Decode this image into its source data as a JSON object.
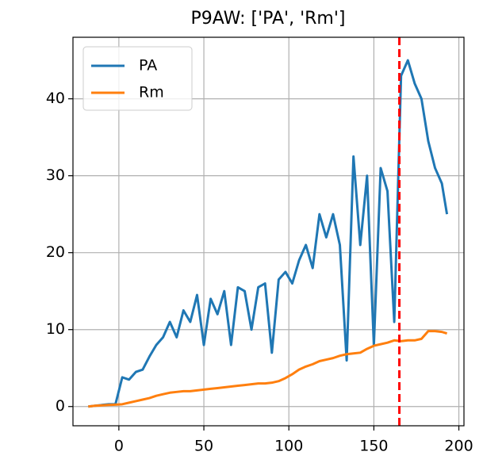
{
  "chart_data": {
    "type": "line",
    "title": "P9AW: ['PA', 'Rm']",
    "x": [
      -18,
      -14,
      -10,
      -6,
      -2,
      2,
      6,
      10,
      14,
      18,
      22,
      26,
      30,
      34,
      38,
      42,
      46,
      50,
      54,
      58,
      62,
      66,
      70,
      74,
      78,
      82,
      86,
      90,
      94,
      98,
      102,
      106,
      110,
      114,
      118,
      122,
      126,
      130,
      134,
      138,
      142,
      146,
      150,
      154,
      158,
      162,
      166,
      170,
      174,
      178,
      182,
      186,
      190,
      193
    ],
    "series": [
      {
        "name": "PA",
        "color": "#1f77b4",
        "values": [
          0,
          0.1,
          0.2,
          0.3,
          0.3,
          3.8,
          3.5,
          4.5,
          4.8,
          6.5,
          8,
          9,
          11,
          9,
          12.5,
          11,
          14.5,
          8,
          14,
          12,
          15,
          8,
          15.5,
          15,
          10,
          15.5,
          16,
          7,
          16.5,
          17.5,
          16,
          19,
          21,
          18,
          25,
          22,
          25,
          21,
          6,
          32.5,
          21,
          30,
          8,
          31,
          28,
          11,
          43,
          45,
          42,
          40,
          34.5,
          31,
          29,
          25
        ]
      },
      {
        "name": "Rm",
        "color": "#ff7f0e",
        "values": [
          0,
          0.1,
          0.15,
          0.2,
          0.25,
          0.3,
          0.5,
          0.7,
          0.9,
          1.1,
          1.4,
          1.6,
          1.8,
          1.9,
          2.0,
          2.0,
          2.1,
          2.2,
          2.3,
          2.4,
          2.5,
          2.6,
          2.7,
          2.8,
          2.9,
          3.0,
          3.0,
          3.1,
          3.3,
          3.7,
          4.2,
          4.8,
          5.2,
          5.5,
          5.9,
          6.1,
          6.3,
          6.6,
          6.8,
          6.9,
          7.0,
          7.5,
          7.9,
          8.1,
          8.3,
          8.6,
          8.5,
          8.6,
          8.6,
          8.8,
          9.8,
          9.8,
          9.7,
          9.5
        ]
      }
    ],
    "xlim": [
      -27,
      203
    ],
    "ylim": [
      -2.5,
      48
    ],
    "xticks": [
      0,
      50,
      100,
      150,
      200
    ],
    "yticks": [
      0,
      10,
      20,
      30,
      40
    ],
    "grid": true,
    "legend": "upper left",
    "vline": 165,
    "vline_color": "#ff0000",
    "vline_style": "dashed"
  }
}
